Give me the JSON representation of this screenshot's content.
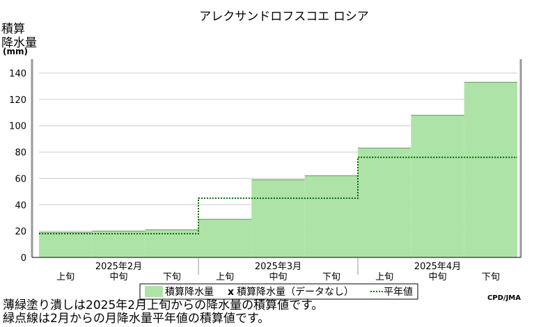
{
  "chart_data": {
    "type": "area",
    "title": "アレクサンドロフスコエ ロシア",
    "ylabel_lines": [
      "積算",
      "降水量"
    ],
    "yunit": "(mm)",
    "ylim": [
      0,
      140
    ],
    "yticks": [
      0,
      20,
      40,
      60,
      80,
      100,
      120,
      140
    ],
    "grid": true,
    "periods": [
      "上旬",
      "中旬",
      "下旬",
      "上旬",
      "中旬",
      "下旬",
      "上旬",
      "中旬",
      "下旬"
    ],
    "months": [
      "2025年2月",
      "2025年3月",
      "2025年4月"
    ],
    "series": [
      {
        "name": "積算降水量",
        "style": "fill",
        "color": "#aee3a8",
        "edge": [
          {
            "x": 0.0,
            "y": 19
          },
          {
            "x": 1.0,
            "y": 20
          },
          {
            "x": 2.0,
            "y": 21
          },
          {
            "x": 3.0,
            "y": 29
          },
          {
            "x": 4.0,
            "y": 59
          },
          {
            "x": 5.0,
            "y": 62
          },
          {
            "x": 6.0,
            "y": 83
          },
          {
            "x": 7.0,
            "y": 108
          },
          {
            "x": 8.0,
            "y": 133
          }
        ]
      },
      {
        "name": "平年値",
        "style": "dotted",
        "color": "#006400",
        "values": [
          18,
          18,
          18,
          45,
          45,
          45,
          76,
          76,
          76
        ]
      }
    ],
    "legend": {
      "filled_label": "積算降水量",
      "marker": "x",
      "missing_label": "積算降水量（データなし）",
      "normal_label": "平年値"
    },
    "credit": "CPD/JMA"
  },
  "notes": [
    "薄緑塗り潰しは2025年2月上旬からの降水量の積算値です。",
    "緑点線は2月からの月降水量平年値の積算値です。"
  ]
}
